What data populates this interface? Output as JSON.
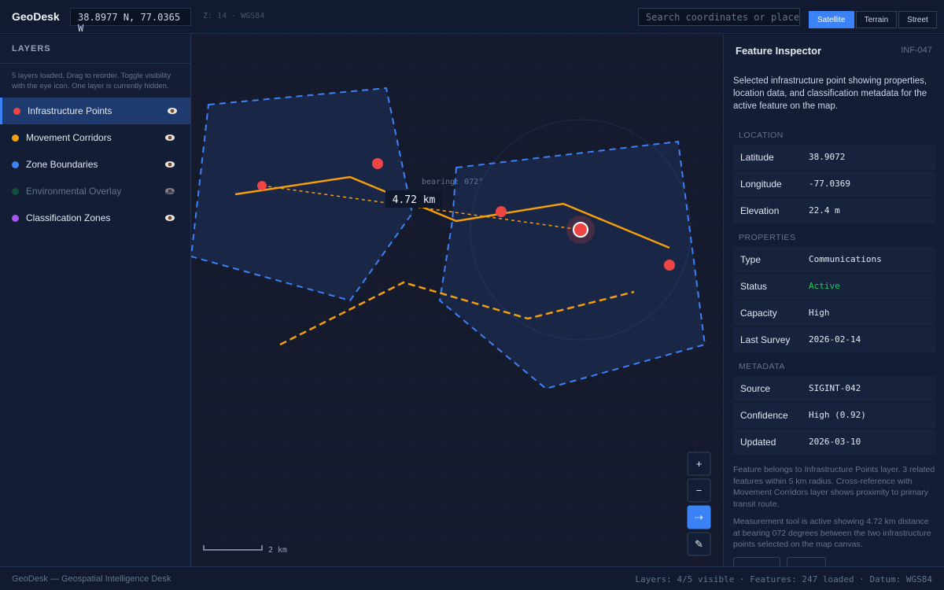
{
  "header": {
    "brand": "GeoDesk",
    "coords": "38.8977 N, 77.0365 W",
    "zoom": "Z: 14 · WGS84",
    "search_placeholder": "Search coordinates or places",
    "basemaps": [
      "Satellite",
      "Terrain",
      "Street"
    ]
  },
  "layers": {
    "title": "LAYERS",
    "hint": "5 layers loaded. Drag to reorder. Toggle visibility with the eye icon. One layer is currently hidden.",
    "items": [
      {
        "name": "Infrastructure Points",
        "color": "#ef4444"
      },
      {
        "name": "Movement Corridors",
        "color": "#f59e0b"
      },
      {
        "name": "Zone Boundaries",
        "color": "#3b82f6"
      },
      {
        "name": "Environmental Overlay",
        "color": "#134e3a"
      },
      {
        "name": "Classification Zones",
        "color": "#a855f7"
      }
    ]
  },
  "map": {
    "bearing": "bearing: 072°",
    "distance": "4.72 km",
    "scale": "2 km",
    "controls": [
      "+",
      "−",
      "⇢",
      "✎"
    ]
  },
  "inspector": {
    "title": "Feature Inspector",
    "id": "INF-047",
    "description": "Selected infrastructure point showing properties, location data, and classification metadata for the active feature on the map.",
    "sections": [
      {
        "title": "LOCATION",
        "rows": [
          [
            "Latitude",
            "38.9072"
          ],
          [
            "Longitude",
            "-77.0369"
          ],
          [
            "Elevation",
            "22.4 m"
          ]
        ]
      },
      {
        "title": "PROPERTIES",
        "rows": [
          [
            "Type",
            "Communications"
          ],
          [
            "Status",
            "Active"
          ],
          [
            "Capacity",
            "High"
          ],
          [
            "Last Survey",
            "2026-02-14"
          ]
        ]
      },
      {
        "title": "METADATA",
        "rows": [
          [
            "Source",
            "SIGINT-042"
          ],
          [
            "Confidence",
            "High (0.92)"
          ],
          [
            "Updated",
            "2026-03-10"
          ]
        ]
      }
    ],
    "notes": [
      "Feature belongs to Infrastructure Points layer. 3 related features within 5 km radius. Cross-reference with Movement Corridors layer shows proximity to primary transit route.",
      "Measurement tool is active showing 4.72 km distance at bearing 072 degrees between the two infrastructure points selected on the map canvas."
    ]
  },
  "footer": {
    "left": "GeoDesk — Geospatial Intelligence Desk",
    "right": "Layers: 4/5 visible · Features: 247 loaded · Datum: WGS84"
  }
}
